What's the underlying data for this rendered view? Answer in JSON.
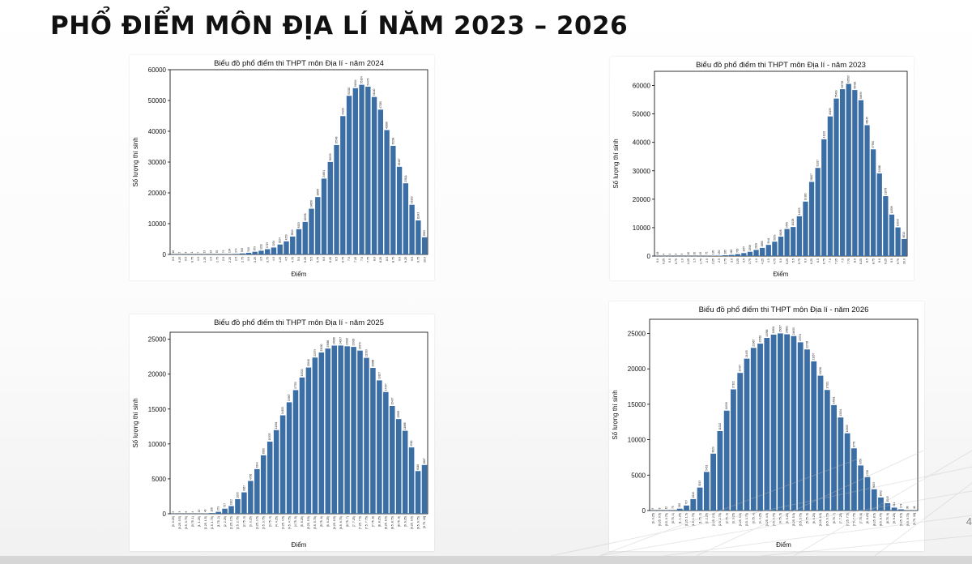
{
  "slide": {
    "title": "PHỔ ĐIỂM MÔN ĐỊA LÍ NĂM 2023 – 2026",
    "page_number": "4"
  },
  "colors": {
    "bar": "#3b6ea5",
    "axis": "#000000"
  },
  "chart_data": [
    {
      "type": "bar",
      "title": "Biểu đồ phổ điểm thi THPT môn Địa lí - năm 2024",
      "xlabel": "Điểm",
      "ylabel": "Số lượng thí sinh",
      "ylim": [
        0,
        60000
      ],
      "yticks": [
        0,
        10000,
        20000,
        30000,
        40000,
        50000,
        60000
      ],
      "categories": [
        "0.0",
        "0.25",
        "0.5",
        "0.75",
        "1.0",
        "1.25",
        "1.5",
        "1.75",
        "2.0",
        "2.25",
        "2.5",
        "2.75",
        "3.0",
        "3.25",
        "3.5",
        "3.75",
        "4.0",
        "4.25",
        "4.5",
        "4.75",
        "5.0",
        "5.25",
        "5.5",
        "5.75",
        "6.0",
        "6.25",
        "6.5",
        "6.75",
        "7.0",
        "7.25",
        "7.5",
        "7.75",
        "8.0",
        "8.25",
        "8.5",
        "8.75",
        "9.0",
        "9.25",
        "9.5",
        "9.75",
        "10.0"
      ],
      "values": [
        16,
        2,
        3,
        1,
        7,
        13,
        23,
        52,
        79,
        134,
        174,
        345,
        540,
        879,
        1211,
        1715,
        2254,
        3224,
        4259,
        5819,
        8203,
        10558,
        14858,
        18635,
        24631,
        30033,
        35548,
        44929,
        51520,
        54004,
        55104,
        54476,
        51140,
        47030,
        40386,
        35264,
        28467,
        23111,
        16132,
        11043,
        5583
      ],
      "data_labels": [
        "16",
        "2",
        "3",
        "1",
        "7",
        "13",
        "23",
        "52",
        "79",
        "134",
        "174",
        "345",
        "540",
        "879",
        "1211",
        "1715",
        "2254",
        "3224",
        "4259",
        "5819",
        "8203",
        "10558",
        "14858",
        "18635",
        "24631",
        "30033",
        "35548",
        "44929",
        "51520",
        "54004",
        "55104",
        "54476",
        "51140",
        "47030",
        "40386",
        "35264",
        "28467",
        "23111",
        "16132",
        "11043",
        "5583"
      ]
    },
    {
      "type": "bar",
      "title": "Biểu đồ phổ điểm thi THPT môn Địa lí - năm 2023",
      "xlabel": "Điểm",
      "ylabel": "Số lượng thí sinh",
      "ylim": [
        0,
        65000
      ],
      "yticks": [
        0,
        10000,
        20000,
        30000,
        40000,
        50000,
        60000
      ],
      "categories": [
        "0.0",
        "0.25",
        "0.5",
        "0.75",
        "1.0",
        "1.25",
        "1.5",
        "1.75",
        "2.0",
        "2.25",
        "2.5",
        "2.75",
        "3.0",
        "3.25",
        "3.5",
        "3.75",
        "4.0",
        "4.25",
        "4.5",
        "4.75",
        "5.0",
        "5.25",
        "5.5",
        "5.75",
        "6.0",
        "6.25",
        "6.5",
        "6.75",
        "7.0",
        "7.25",
        "7.5",
        "7.75",
        "8.0",
        "8.25",
        "8.5",
        "8.75",
        "9.0",
        "9.25",
        "9.5",
        "9.75",
        "10.0"
      ],
      "values": [
        48,
        4,
        4,
        2,
        3,
        10,
        20,
        45,
        75,
        120,
        150,
        285,
        416,
        700,
        1057,
        1506,
        2169,
        2880,
        3944,
        5059,
        6826,
        9540,
        10226,
        14023,
        19160,
        26107,
        31017,
        41102,
        49135,
        55409,
        58705,
        60595,
        58418,
        54839,
        46045,
        37550,
        29060,
        21078,
        14598,
        10093,
        6010
      ],
      "data_labels": [
        "48",
        "4",
        "4",
        "2",
        "3",
        "10",
        "20",
        "45",
        "75",
        "120",
        "150",
        "285",
        "416",
        "700",
        "1057",
        "1506",
        "2169",
        "2880",
        "3944",
        "5059",
        "6826",
        "9540",
        "10226",
        "14023",
        "19160",
        "26107",
        "31017",
        "41102",
        "49135",
        "55409",
        "58705",
        "60595",
        "58418",
        "54839",
        "46045",
        "37550",
        "29060",
        "21078",
        "14598",
        "10093",
        "6010"
      ]
    },
    {
      "type": "bar",
      "title": "Biểu đồ phổ điểm thi THPT môn Địa lí - năm 2025",
      "xlabel": "Điểm",
      "ylabel": "Số lượng thí sinh",
      "ylim": [
        0,
        26000
      ],
      "yticks": [
        0,
        5000,
        10000,
        15000,
        20000,
        25000
      ],
      "categories": [
        "[0, 0.25)",
        "[0.25, 0.5)",
        "[0.5, 0.75)",
        "[0.75, 1)",
        "[1, 1.25)",
        "[1.25, 1.5)",
        "[1.5, 1.75)",
        "[1.75, 2)",
        "[2, 2.25)",
        "[2.25, 2.5)",
        "[2.5, 2.75)",
        "[2.75, 3)",
        "[3, 3.25)",
        "[3.25, 3.5)",
        "[3.5, 3.75)",
        "[3.75, 4)",
        "[4, 4.25)",
        "[4.25, 4.5)",
        "[4.5, 4.75)",
        "[4.75, 5)",
        "[5, 5.25)",
        "[5.25, 5.5)",
        "[5.5, 5.75)",
        "[5.75, 6)",
        "[6, 6.25)",
        "[6.25, 6.5)",
        "[6.5, 6.75)",
        "[6.75, 7)",
        "[7, 7.25)",
        "[7.25, 7.5)",
        "[7.5, 7.75)",
        "[7.75, 8)",
        "[8, 8.25)",
        "[8.25, 8.5)",
        "[8.5, 8.75)",
        "[8.75, 9)",
        "[9, 9.25)",
        "[9.25, 9.5)",
        "[9.5, 9.75)",
        "[9.75, 10]"
      ],
      "values": [
        5,
        3,
        6,
        4,
        20,
        40,
        106,
        279,
        727,
        1102,
        2095,
        3067,
        4706,
        6394,
        8380,
        10333,
        11984,
        14100,
        15967,
        17709,
        19520,
        20946,
        22379,
        23100,
        23666,
        24086,
        24097,
        23990,
        23900,
        23370,
        22333,
        20888,
        19107,
        17437,
        15437,
        13563,
        11888,
        9500,
        6116,
        6987
      ],
      "data_labels": [
        "5",
        "3",
        "6",
        "4",
        "20",
        "40",
        "106",
        "279",
        "727",
        "1102",
        "2095",
        "3067",
        "4706",
        "6394",
        "8380",
        "10333",
        "11984",
        "14100",
        "15967",
        "17709",
        "19520",
        "20946",
        "22379",
        "23100",
        "23666",
        "24086",
        "24097",
        "23990",
        "23900",
        "23370",
        "22333",
        "20888",
        "19107",
        "17437",
        "15437",
        "13563",
        "11888",
        "9500",
        "6116",
        "6987"
      ]
    },
    {
      "type": "bar",
      "title": "Biểu đồ phổ điểm thi THPT môn Địa lí - năm 2026",
      "xlabel": "Điểm",
      "ylabel": "Số lượng thí sinh",
      "ylim": [
        0,
        27000
      ],
      "yticks": [
        0,
        5000,
        10000,
        15000,
        20000,
        25000
      ],
      "categories": [
        "[0, 0.25)",
        "[0.25, 0.5)",
        "[0.5, 0.75)",
        "[0.75, 1)",
        "[1, 1.25)",
        "[1.25, 1.5)",
        "[1.5, 1.75)",
        "[1.75, 2)",
        "[2, 2.25)",
        "[2.25, 2.5)",
        "[2.5, 2.75)",
        "[2.75, 3)",
        "[3, 3.25)",
        "[3.25, 3.5)",
        "[3.5, 3.75)",
        "[3.75, 4)",
        "[4, 4.25)",
        "[4.25, 4.5)",
        "[4.5, 4.75)",
        "[4.75, 5)",
        "[5, 5.25)",
        "[5.25, 5.5)",
        "[5.5, 5.75)",
        "[5.75, 6)",
        "[6, 6.25)",
        "[6.25, 6.5)",
        "[6.5, 6.75)",
        "[6.75, 7)",
        "[7, 7.25)",
        "[7.25, 7.5)",
        "[7.5, 7.75)",
        "[7.75, 8)",
        "[8, 8.25)",
        "[8.25, 8.5)",
        "[8.5, 8.75)",
        "[8.75, 9)",
        "[9, 9.25)",
        "[9.25, 9.5)",
        "[9.5, 9.75)",
        "[9.75, 10]"
      ],
      "values": [
        5,
        8,
        12,
        75,
        262,
        707,
        1616,
        3243,
        5451,
        8029,
        11212,
        14098,
        17102,
        19427,
        21435,
        22965,
        23562,
        24366,
        24834,
        25007,
        24881,
        24633,
        23751,
        22738,
        21057,
        19038,
        17021,
        14891,
        13134,
        10905,
        8778,
        6359,
        4726,
        3003,
        1842,
        1043,
        411,
        174,
        38,
        46
      ],
      "data_labels": [
        "5",
        "8",
        "12",
        "75",
        "262",
        "707",
        "1616",
        "3243",
        "5451",
        "8029",
        "11212",
        "14098",
        "17102",
        "19427",
        "21435",
        "22965",
        "23562",
        "24366",
        "24834",
        "25007",
        "24881",
        "24633",
        "23751",
        "22738",
        "21057",
        "19038",
        "17021",
        "14891",
        "13134",
        "10905",
        "8778",
        "6359",
        "4726",
        "3003",
        "1842",
        "1043",
        "411",
        "174",
        "38",
        "46"
      ]
    }
  ]
}
